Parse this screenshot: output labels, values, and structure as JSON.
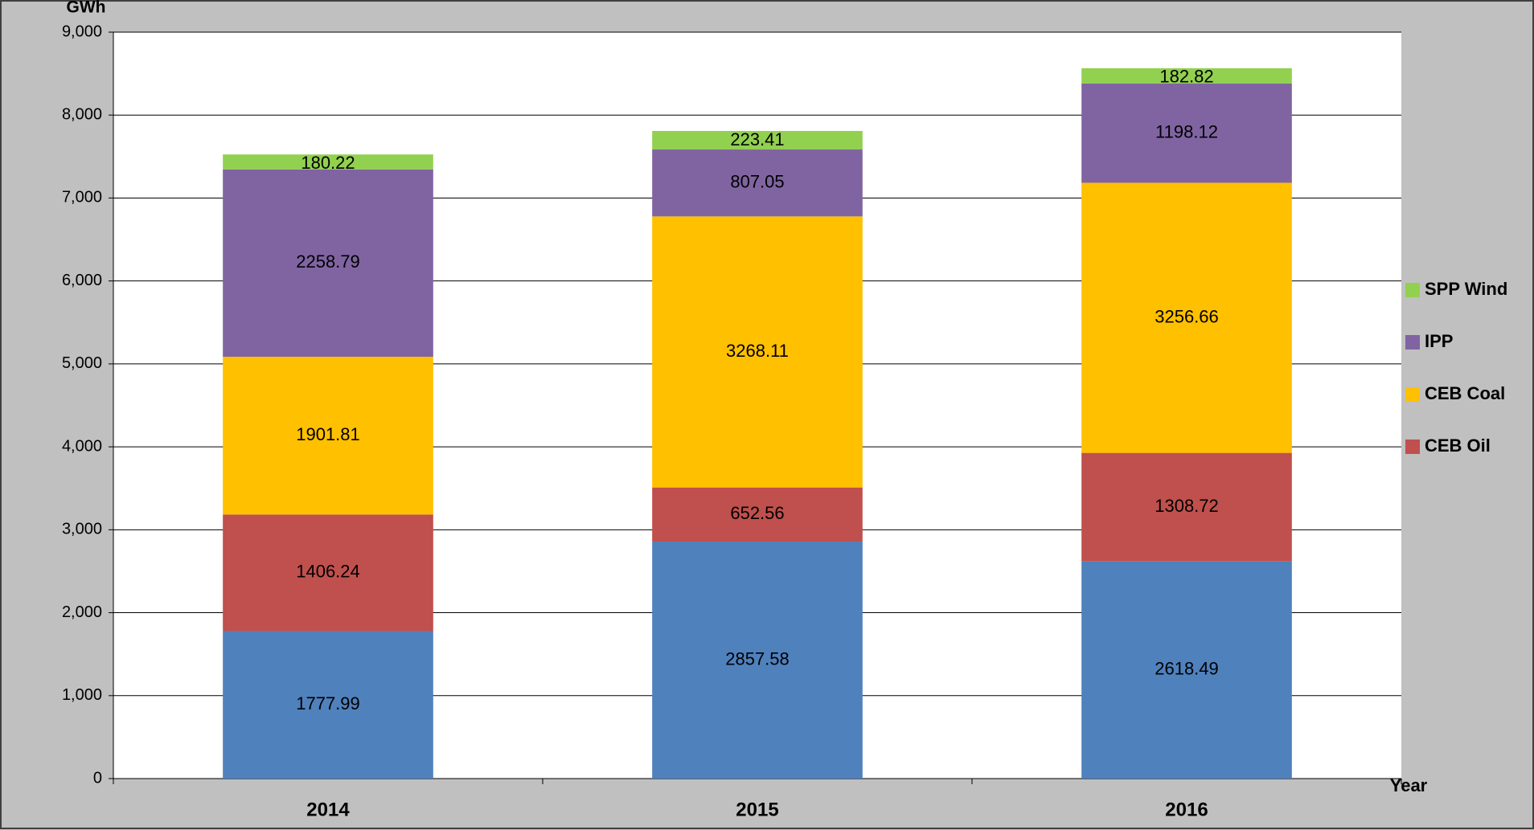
{
  "chart_data": {
    "type": "stacked-bar",
    "y_label": "GWh",
    "x_label": "Year",
    "categories": [
      "2014",
      "2015",
      "2016"
    ],
    "series": [
      {
        "color": "#4f81bd",
        "values": [
          1777.99,
          2857.58,
          2618.49
        ]
      },
      {
        "name": "CEB Oil",
        "color": "#c0504d",
        "values": [
          1406.24,
          652.56,
          1308.72
        ]
      },
      {
        "name": "CEB Coal",
        "color": "#ffc000",
        "values": [
          1901.81,
          3268.11,
          3256.66
        ]
      },
      {
        "name": "IPP",
        "color": "#8064a2",
        "values": [
          2258.79,
          807.05,
          1198.12
        ]
      },
      {
        "name": "SPP Wind",
        "color": "#92d050",
        "values": [
          180.22,
          223.41,
          182.82
        ]
      }
    ],
    "ylim": [
      0,
      9000
    ],
    "yticks": [
      0,
      {
        "value": 1000,
        "label": "1,000"
      },
      {
        "value": 2000,
        "label": "2,000"
      },
      {
        "value": 3000,
        "label": "3,000"
      },
      {
        "value": 4000,
        "label": "4,000"
      },
      {
        "value": 5000,
        "label": "5,000"
      },
      {
        "value": 6000,
        "label": "6,000"
      },
      {
        "value": 7000,
        "label": "7,000"
      },
      {
        "value": 8000,
        "label": "8,000"
      },
      {
        "value": 9000,
        "label": "9,000"
      }
    ],
    "grid": true,
    "legend": "right"
  }
}
